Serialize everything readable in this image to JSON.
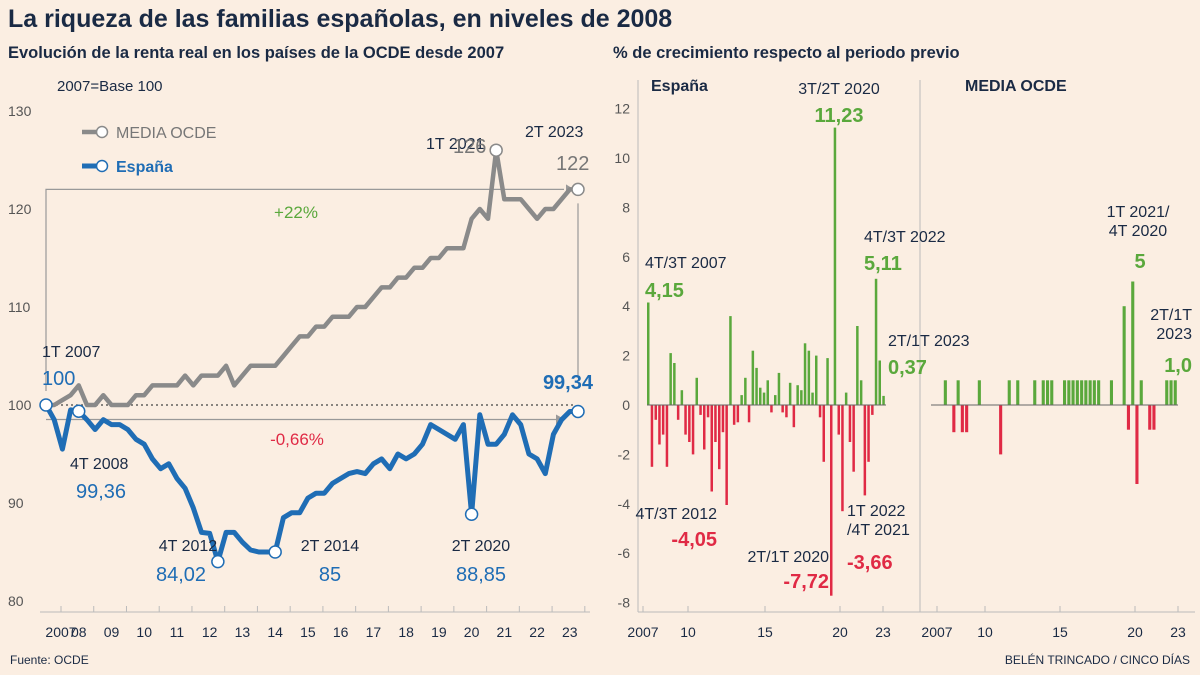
{
  "title": "La riqueza de las familias españolas, en niveles de 2008",
  "source": "Fuente: OCDE",
  "credit": "BELÉN TRINCADO / CINCO DÍAS",
  "colors": {
    "bg": "#fbeee2",
    "gray": "#8a8a8a",
    "blue": "#1f6db5",
    "green": "#5aa83c",
    "red": "#e02a45",
    "navy": "#1a2a44"
  },
  "chart_data": [
    {
      "type": "line",
      "title": "Evolución de la renta real en los países de la OCDE desde 2007",
      "subtitle": "2007=Base 100",
      "ylim": [
        78,
        132
      ],
      "yticks": [
        80,
        90,
        100,
        110,
        120,
        130
      ],
      "xticks": [
        "2007",
        "08",
        "09",
        "10",
        "11",
        "12",
        "13",
        "14",
        "15",
        "16",
        "17",
        "18",
        "19",
        "20",
        "21",
        "22",
        "23"
      ],
      "series": [
        {
          "name": "MEDIA OCDE",
          "x": [
            2007,
            2007.25,
            2007.5,
            2007.75,
            2008,
            2008.25,
            2008.5,
            2008.75,
            2009,
            2009.25,
            2009.5,
            2009.75,
            2010,
            2010.25,
            2010.5,
            2010.75,
            2011,
            2011.25,
            2011.5,
            2011.75,
            2012,
            2012.25,
            2012.5,
            2012.75,
            2013,
            2013.25,
            2013.5,
            2013.75,
            2014,
            2014.25,
            2014.5,
            2014.75,
            2015,
            2015.25,
            2015.5,
            2015.75,
            2016,
            2016.25,
            2016.5,
            2016.75,
            2017,
            2017.25,
            2017.5,
            2017.75,
            2018,
            2018.25,
            2018.5,
            2018.75,
            2019,
            2019.25,
            2019.5,
            2019.75,
            2020,
            2020.25,
            2020.5,
            2020.75,
            2021,
            2021.25,
            2021.5,
            2021.75,
            2022,
            2022.25,
            2022.5,
            2022.75,
            2023,
            2023.25
          ],
          "values": [
            100,
            100,
            100.5,
            101,
            102,
            100,
            100,
            101,
            100,
            100,
            100,
            101,
            101,
            102,
            102,
            102,
            102,
            103,
            102,
            103,
            103,
            103,
            104,
            102,
            103,
            104,
            104,
            104,
            104,
            105,
            106,
            107,
            107,
            108,
            108,
            109,
            109,
            109,
            110,
            110,
            111,
            112,
            112,
            113,
            113,
            114,
            114,
            115,
            115,
            116,
            116,
            116,
            119,
            120,
            119,
            126,
            121,
            121,
            121,
            120,
            119,
            120,
            120,
            121,
            122,
            122
          ]
        },
        {
          "name": "España",
          "x": [
            2007,
            2007.25,
            2007.5,
            2007.75,
            2008,
            2008.25,
            2008.5,
            2008.75,
            2009,
            2009.25,
            2009.5,
            2009.75,
            2010,
            2010.25,
            2010.5,
            2010.75,
            2011,
            2011.25,
            2011.5,
            2011.75,
            2012,
            2012.25,
            2012.5,
            2012.75,
            2013,
            2013.25,
            2013.5,
            2013.75,
            2014,
            2014.25,
            2014.5,
            2014.75,
            2015,
            2015.25,
            2015.5,
            2015.75,
            2016,
            2016.25,
            2016.5,
            2016.75,
            2017,
            2017.25,
            2017.5,
            2017.75,
            2018,
            2018.25,
            2018.5,
            2018.75,
            2019,
            2019.25,
            2019.5,
            2019.75,
            2020,
            2020.25,
            2020.5,
            2020.75,
            2021,
            2021.25,
            2021.5,
            2021.75,
            2022,
            2022.25,
            2022.5,
            2022.75,
            2023,
            2023.25
          ],
          "values": [
            100,
            98.5,
            95.5,
            99.5,
            99.36,
            98.5,
            97.5,
            98.5,
            98,
            98,
            97.5,
            96.5,
            96,
            94.5,
            93.5,
            94,
            92.5,
            91.5,
            89.5,
            87,
            86.9,
            84.02,
            87,
            87,
            86,
            85.2,
            85,
            85,
            85,
            88.5,
            89,
            89,
            90.5,
            91,
            91,
            92,
            92.5,
            93,
            93.2,
            93,
            94,
            94.5,
            93.5,
            95,
            94.5,
            95,
            96,
            98,
            97.5,
            97,
            96.5,
            98,
            88.85,
            99,
            96,
            96,
            97,
            99,
            98,
            95,
            94.5,
            93,
            97,
            98.5,
            99.34,
            99.34
          ]
        }
      ],
      "annotations": [
        {
          "label": "1T 2007",
          "value": "100"
        },
        {
          "label": "4T 2008",
          "value": "99,36"
        },
        {
          "label": "4T 2012",
          "value": "84,02"
        },
        {
          "label": "2T 2014",
          "value": "85"
        },
        {
          "label": "2T 2020",
          "value": "88,85"
        },
        {
          "label": "",
          "value": "99,34"
        },
        {
          "label": "1T 2021",
          "value": "126"
        },
        {
          "label": "2T 2023",
          "value": "122"
        }
      ],
      "changes": {
        "oecd": "+22%",
        "spain": "-0,66%"
      }
    },
    {
      "type": "bar",
      "title": "% de crecimiento respecto al periodo previo",
      "ylim": [
        -8.5,
        12.5
      ],
      "yticks": [
        -8,
        -6,
        -4,
        -2,
        0,
        2,
        4,
        6,
        8,
        10,
        12
      ],
      "panels": [
        {
          "name": "España",
          "xticks": [
            "2007",
            "10",
            "15",
            "20",
            "23"
          ],
          "values": [
            4.15,
            -2.5,
            -0.6,
            -1.6,
            -1.2,
            -2.5,
            2.1,
            1.7,
            -0.6,
            0.6,
            -1.2,
            -1.5,
            -2,
            1.1,
            -0.4,
            -1.8,
            -0.5,
            -3.5,
            -1.5,
            -2.6,
            -1.1,
            -4.05,
            3.6,
            -0.8,
            -0.7,
            0.4,
            1.1,
            -0.7,
            2.2,
            1.5,
            0.7,
            0.5,
            1,
            -0.3,
            0.4,
            1.3,
            -0.3,
            -0.5,
            0.9,
            -0.9,
            0.8,
            0.6,
            2.5,
            2.2,
            0.5,
            2,
            -0.5,
            -2.3,
            1.9,
            -7.72,
            11.23,
            -1.2,
            -4.3,
            0.5,
            -1.5,
            -2.7,
            3.2,
            1,
            -3.66,
            -2.3,
            -0.4,
            5.11,
            1.8,
            0.37
          ]
        },
        {
          "name": "MEDIA OCDE",
          "xticks": [
            "2007",
            "10",
            "15",
            "20",
            "23"
          ],
          "values": [
            0,
            0,
            0,
            1,
            0,
            -1.1,
            1,
            -1.1,
            -1.1,
            0,
            0,
            1,
            0,
            0,
            0,
            0,
            -2,
            0,
            1,
            0,
            1,
            0,
            0,
            0,
            1,
            0,
            1,
            1,
            1,
            0,
            0,
            1,
            1,
            1,
            1,
            1,
            1,
            1,
            1,
            1,
            0,
            0,
            1,
            0,
            0,
            4,
            -1,
            5,
            -3.2,
            1,
            0,
            -1,
            -1,
            0,
            0,
            1,
            1,
            1
          ]
        }
      ],
      "annotations": [
        {
          "label": "4T/3T 2007",
          "value": "4,15"
        },
        {
          "label": "4T/3T 2012",
          "value": "-4,05"
        },
        {
          "label": "2T/1T 2020",
          "value": "-7,72"
        },
        {
          "label": "3T/2T 2020",
          "value": "11,23"
        },
        {
          "label": "1T 2022\n/4T 2021",
          "value": "-3,66"
        },
        {
          "label": "4T/3T 2022",
          "value": "5,11"
        },
        {
          "label": "2T/1T 2023",
          "value": "0,37"
        },
        {
          "label": "1T 2021/\n4T 2020",
          "value": "5"
        },
        {
          "label": "2T/1T\n2023",
          "value": "1,0"
        }
      ]
    }
  ]
}
